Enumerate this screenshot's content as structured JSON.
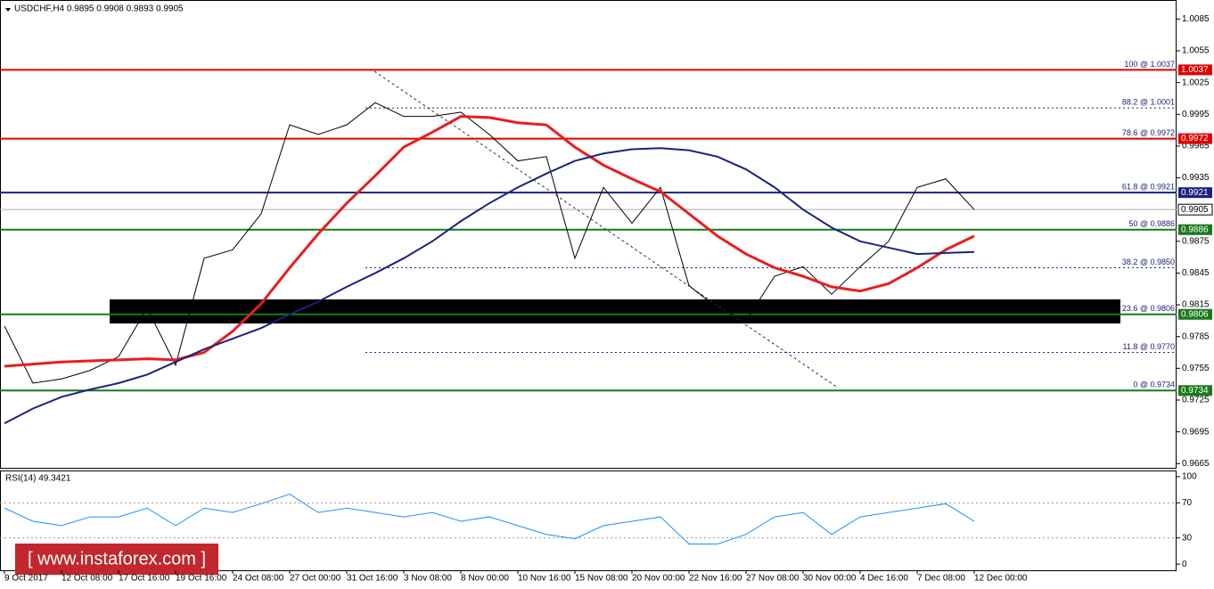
{
  "chart_data": [
    {
      "type": "line",
      "title": "USDCHF,H4 0.9895 0.9908 0.9893 0.9905",
      "ylim": [
        0.9661,
        1.0103
      ],
      "yticks": [
        1.0085,
        1.0055,
        1.0025,
        0.9995,
        0.9965,
        0.9935,
        0.9875,
        0.9845,
        0.9815,
        0.9785,
        0.9755,
        0.9725,
        0.9695,
        0.9665
      ],
      "series": [
        {
          "color": "#000000",
          "values": [
            0.9795,
            0.9741,
            0.9745,
            0.9753,
            0.9766,
            0.9812,
            0.9758,
            0.9859,
            0.9867,
            0.9901,
            0.9985,
            0.9976,
            0.9985,
            1.0006,
            0.9993,
            0.9993,
            0.9997,
            0.9976,
            0.9951,
            0.9955,
            0.9859,
            0.9926,
            0.9892,
            0.9926,
            0.9833,
            0.9812,
            0.98,
            0.9842,
            0.9851,
            0.9825,
            0.9851,
            0.9875,
            0.9926,
            0.9934,
            0.9905
          ]
        },
        {
          "color": "#e81e1e",
          "values": [
            0.9757,
            0.9759,
            0.9761,
            0.9762,
            0.9763,
            0.9764,
            0.9763,
            0.977,
            0.979,
            0.9816,
            0.985,
            0.9882,
            0.9911,
            0.9937,
            0.9964,
            0.9978,
            0.9993,
            0.9992,
            0.9987,
            0.9985,
            0.9964,
            0.9947,
            0.9934,
            0.9922,
            0.9901,
            0.988,
            0.9863,
            0.985,
            0.9842,
            0.9832,
            0.9828,
            0.9835,
            0.985,
            0.9867,
            0.988
          ]
        },
        {
          "color": "#1a237e",
          "values": [
            0.9703,
            0.9717,
            0.9728,
            0.9735,
            0.9741,
            0.9749,
            0.9761,
            0.9773,
            0.9783,
            0.9793,
            0.9806,
            0.9818,
            0.9832,
            0.9845,
            0.9859,
            0.9875,
            0.9894,
            0.9911,
            0.9926,
            0.9939,
            0.9951,
            0.9958,
            0.9962,
            0.9963,
            0.9961,
            0.9955,
            0.9943,
            0.9926,
            0.9905,
            0.9888,
            0.9875,
            0.9869,
            0.9863,
            0.9864,
            0.9865
          ]
        }
      ],
      "levels": [
        {
          "text": "100 @ 1.0037",
          "value": 1.0037,
          "box": "1.0037",
          "color": "#e00000",
          "style": "solid"
        },
        {
          "text": "88.2 @ 1.0001",
          "value": 1.0001,
          "color": "#1a237e",
          "style": "dotted"
        },
        {
          "text": "78.6 @ 0.9972",
          "value": 0.9972,
          "box": "0.9972",
          "color": "#e00000",
          "style": "solid"
        },
        {
          "text": "61.8 @ 0.9921",
          "value": 0.9921,
          "box": "0.9921",
          "color": "#1a237e",
          "style": "solid"
        },
        {
          "text": "50 @ 0.9886",
          "value": 0.9886,
          "box": "0.9886",
          "color": "#1a7a1a",
          "style": "solid"
        },
        {
          "text": "38.2 @ 0.9850",
          "value": 0.985,
          "color": "#1a237e",
          "style": "dotted"
        },
        {
          "text": "23.6 @ 0.9806",
          "value": 0.9806,
          "box": "0.9806",
          "color": "#1a7a1a",
          "style": "solid"
        },
        {
          "text": "11.8 @ 0.9770",
          "value": 0.977,
          "color": "#1a237e",
          "style": "dotted"
        },
        {
          "text": "0 @ 0.9734",
          "value": 0.9734,
          "box": "0.9734",
          "color": "#1a7a1a",
          "style": "solid"
        }
      ],
      "last_price": 0.9905
    },
    {
      "type": "line",
      "title": "RSI(14) 49.3421",
      "ylim": [
        -7,
        107
      ],
      "yticks": [
        100,
        70,
        30,
        0
      ],
      "levels": [
        70,
        30
      ],
      "categories": [
        "9 Oct 2017",
        null,
        "12 Oct 08:00",
        null,
        "17 Oct 16:00",
        null,
        "19 Oct 16:00",
        null,
        "24 Oct 08:00",
        null,
        "27 Oct 00:00",
        null,
        "31 Oct 16:00",
        null,
        "3 Nov 08:00",
        null,
        "8 Nov 00:00",
        null,
        "10 Nov 16:00",
        null,
        "15 Nov 08:00",
        null,
        "20 Nov 00:00",
        null,
        "22 Nov 16:00",
        null,
        "27 Nov 08:00",
        null,
        "30 Nov 00:00",
        null,
        "4 Dec 16:00",
        null,
        "7 Dec 08:00",
        null,
        "12 Dec 00:00"
      ],
      "series": [
        {
          "color": "#1e90ff",
          "values": [
            64,
            49,
            44,
            54,
            54,
            64,
            44,
            64,
            59,
            69,
            80,
            59,
            64,
            59,
            54,
            59,
            49,
            54,
            44,
            34,
            29,
            44,
            49,
            54,
            23,
            23,
            34,
            54,
            59,
            34,
            54,
            59,
            64,
            69,
            49
          ]
        }
      ]
    }
  ],
  "watermark": "[  www.instaforex.com ]"
}
